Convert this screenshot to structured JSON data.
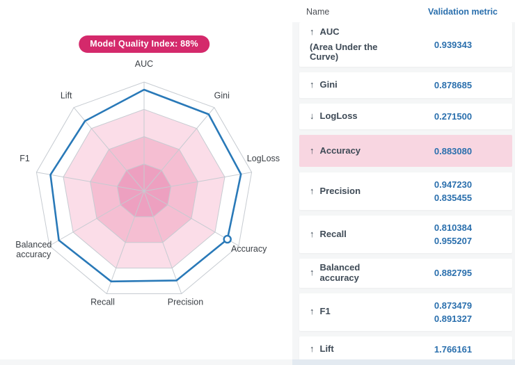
{
  "badge": {
    "label": "Model Quality Index: 88%",
    "background": "#d4296b",
    "text_color": "#ffffff"
  },
  "table": {
    "columns": [
      "Name",
      "Validation metric"
    ],
    "value_color": "#2a6fad",
    "highlight_color": "#f8d6e1",
    "rows": [
      {
        "arrow": "↑",
        "name": "AUC",
        "subtitle": "(Area Under the Curve)",
        "values": [
          "0.939343"
        ],
        "highlighted": false
      },
      {
        "arrow": "↑",
        "name": "Gini",
        "subtitle": "",
        "values": [
          "0.878685"
        ],
        "highlighted": false
      },
      {
        "arrow": "↓",
        "name": "LogLoss",
        "subtitle": "",
        "values": [
          "0.271500"
        ],
        "highlighted": false
      },
      {
        "arrow": "↑",
        "name": "Accuracy",
        "subtitle": "",
        "values": [
          "0.883080"
        ],
        "highlighted": true
      },
      {
        "arrow": "↑",
        "name": "Precision",
        "subtitle": "",
        "values": [
          "0.947230",
          "0.835455"
        ],
        "highlighted": false
      },
      {
        "arrow": "↑",
        "name": "Recall",
        "subtitle": "",
        "values": [
          "0.810384",
          "0.955207"
        ],
        "highlighted": false
      },
      {
        "arrow": "↑",
        "name": "Balanced accuracy",
        "subtitle": "",
        "values": [
          "0.882795"
        ],
        "highlighted": false
      },
      {
        "arrow": "↑",
        "name": "F1",
        "subtitle": "",
        "values": [
          "0.873479",
          "0.891327"
        ],
        "highlighted": false
      },
      {
        "arrow": "↑",
        "name": "Lift",
        "subtitle": "",
        "values": [
          "1.766161"
        ],
        "highlighted": false
      }
    ]
  },
  "chart_data": {
    "type": "radar",
    "title": "Model Quality Index: 88%",
    "categories": [
      "AUC",
      "Gini",
      "LogLoss",
      "Accuracy",
      "Precision",
      "Recall",
      "Balanced accuracy",
      "F1",
      "Lift"
    ],
    "values": [
      0.93,
      0.92,
      0.9,
      0.88,
      0.87,
      0.88,
      0.9,
      0.87,
      0.84
    ],
    "value_range": [
      0,
      1
    ],
    "ring_levels": [
      0.25,
      0.5,
      0.75,
      1.0
    ],
    "ring_fills": [
      "#eda0c0",
      "#f5bed2",
      "#fbdde8",
      "#ffffff"
    ],
    "grid_color": "#c6cbd1",
    "line_color": "#2979b8",
    "marker_category": "Accuracy",
    "label_color": "#3a3f45",
    "legend": "none",
    "axes_start": "top",
    "direction": "clockwise"
  }
}
